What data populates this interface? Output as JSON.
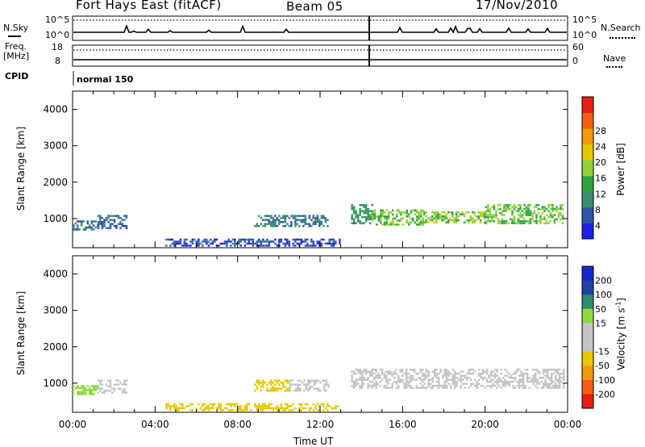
{
  "header": {
    "station": "Fort Hays East (fitACF)",
    "beam": "Beam 05",
    "date": "17/Nov/2010"
  },
  "top_panels": {
    "nsky_label": "N.Sky",
    "nsearch_label": "N.Search",
    "freq_label": "Freq.",
    "freq_unit": "[MHz]",
    "nave_label": "Nave",
    "cpid_label": "CPID",
    "cpid_value": "normal 150",
    "noise_ticks": [
      "10^5",
      "10^0"
    ],
    "freq_ticks": [
      "18",
      "8"
    ],
    "nave_ticks": [
      "60",
      "0"
    ]
  },
  "colors": {
    "power": [
      "#1e1ee6",
      "#2e55a8",
      "#3c8c6e",
      "#2fa542",
      "#8fd13a",
      "#e6c800",
      "#f09a10",
      "#f06014",
      "#e81e14"
    ],
    "velocity_neg": [
      "#e6c800",
      "#f09a10",
      "#f06014",
      "#e81e14"
    ],
    "velocity_pos": [
      "#90d840",
      "#2e8c6e",
      "#2040a8",
      "#1428c8"
    ],
    "velocity_ground": "#c4c4c4"
  },
  "chart_data": [
    {
      "type": "heatmap",
      "title": "Power",
      "xlabel": "",
      "ylabel": "Slant Range [km]",
      "xlim": [
        "00:00",
        "24:00"
      ],
      "ylim": [
        200,
        4500
      ],
      "y_ticks": [
        "1000",
        "2000",
        "3000",
        "4000"
      ],
      "colorbar_label": "Power [dB]",
      "colorbar_ticks": [
        "4",
        "8",
        "12",
        "16",
        "20",
        "24",
        "28"
      ],
      "regions": [
        {
          "start": 0.0,
          "end": 1.2,
          "range": [
            700,
            950
          ],
          "value": 6
        },
        {
          "start": 1.2,
          "end": 2.6,
          "range": [
            750,
            1100
          ],
          "value": 6
        },
        {
          "start": 8.8,
          "end": 12.4,
          "range": [
            800,
            1100
          ],
          "value": 7
        },
        {
          "start": 13.5,
          "end": 14.5,
          "range": [
            900,
            1400
          ],
          "value": 9
        },
        {
          "start": 14.5,
          "end": 17.0,
          "range": [
            850,
            1250
          ],
          "value": 13
        },
        {
          "start": 17.0,
          "end": 20.0,
          "range": [
            900,
            1200
          ],
          "value": 14
        },
        {
          "start": 20.0,
          "end": 23.8,
          "range": [
            900,
            1400
          ],
          "value": 13
        },
        {
          "start": 4.5,
          "end": 13.0,
          "range": [
            250,
            450
          ],
          "value": 4
        }
      ]
    },
    {
      "type": "heatmap",
      "title": "Velocity",
      "xlabel": "Time UT",
      "ylabel": "Slant Range [km]",
      "xlim": [
        "00:00",
        "24:00"
      ],
      "ylim": [
        200,
        4500
      ],
      "x_ticks": [
        "00:00",
        "04:00",
        "08:00",
        "12:00",
        "16:00",
        "20:00",
        "00:00"
      ],
      "y_ticks": [
        "1000",
        "2000",
        "3000",
        "4000"
      ],
      "colorbar_label": "Velocity [m s",
      "colorbar_label_exp": "-1",
      "colorbar_label_end": "]",
      "colorbar_ticks": [
        "200",
        "100",
        "50",
        "15",
        "-15",
        "-50",
        "-100",
        "-200"
      ],
      "regions": [
        {
          "start": 0.0,
          "end": 1.2,
          "range": [
            700,
            950
          ],
          "value": 55
        },
        {
          "start": 1.2,
          "end": 2.6,
          "range": [
            750,
            1100
          ],
          "value": 10
        },
        {
          "start": 8.8,
          "end": 10.5,
          "range": [
            800,
            1100
          ],
          "value": -30
        },
        {
          "start": 10.5,
          "end": 12.4,
          "range": [
            800,
            1100
          ],
          "value": 0
        },
        {
          "start": 13.5,
          "end": 23.8,
          "range": [
            850,
            1400
          ],
          "value": 0
        },
        {
          "start": 4.5,
          "end": 13.0,
          "range": [
            250,
            450
          ],
          "value": -40
        }
      ]
    }
  ]
}
